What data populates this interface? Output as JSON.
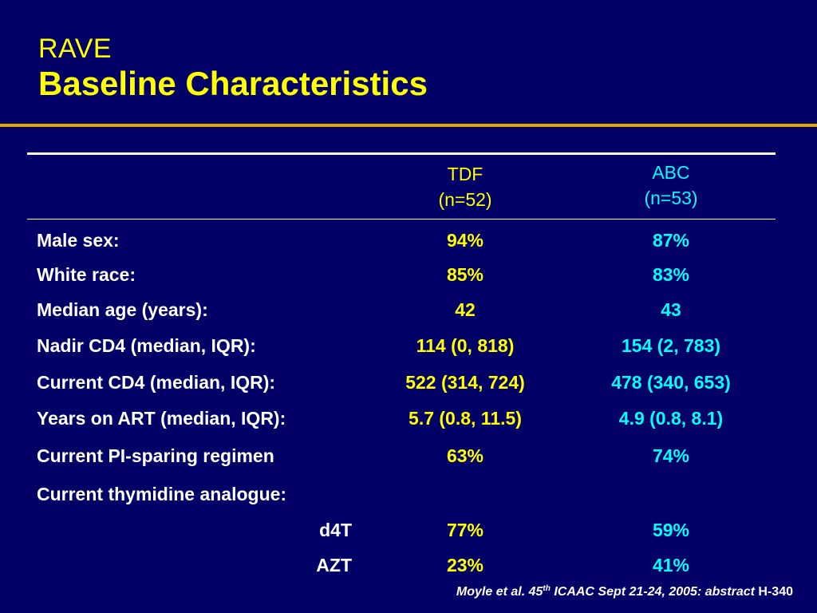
{
  "slide": {
    "title_small": "RAVE",
    "title_main": "Baseline Characteristics"
  },
  "table": {
    "columns": [
      {
        "name": "TDF",
        "n": "(n=52)"
      },
      {
        "name": "ABC",
        "n": "(n=53)"
      }
    ],
    "rows": [
      {
        "label": "Male sex:",
        "tdf": "94%",
        "abc": "87%"
      },
      {
        "label": "White race:",
        "tdf": "85%",
        "abc": "83%"
      },
      {
        "label": "Median age (years):",
        "tdf": "42",
        "abc": "43"
      },
      {
        "label": "Nadir CD4 (median, IQR):",
        "tdf": "114 (0, 818)",
        "abc": "154 (2, 783)"
      },
      {
        "label": "Current CD4 (median, IQR):",
        "tdf": "522 (314, 724)",
        "abc": "478 (340, 653)"
      },
      {
        "label": "Years on ART (median, IQR):",
        "tdf": "5.7 (0.8, 11.5)",
        "abc": "4.9 (0.8, 8.1)"
      },
      {
        "label": "Current PI-sparing regimen",
        "tdf": "63%",
        "abc": "74%"
      },
      {
        "label": "Current thymidine analogue:",
        "tdf": "",
        "abc": ""
      },
      {
        "label": "d4T",
        "tdf": "77%",
        "abc": "59%"
      },
      {
        "label": "AZT",
        "tdf": "23%",
        "abc": "41%"
      }
    ]
  },
  "citation": {
    "text_before_sup": "Moyle et al. 45",
    "sup": "th",
    "text_after_sup": " ICAAC Sept 21-24, 2005: abstract ",
    "abstract_id": "H-340"
  },
  "colors": {
    "background": "#000066",
    "title": "#ffff00",
    "rule": "#e0a800",
    "tdf_values": "#ffff00",
    "abc_values": "#00ffff",
    "labels": "#ffffff"
  }
}
